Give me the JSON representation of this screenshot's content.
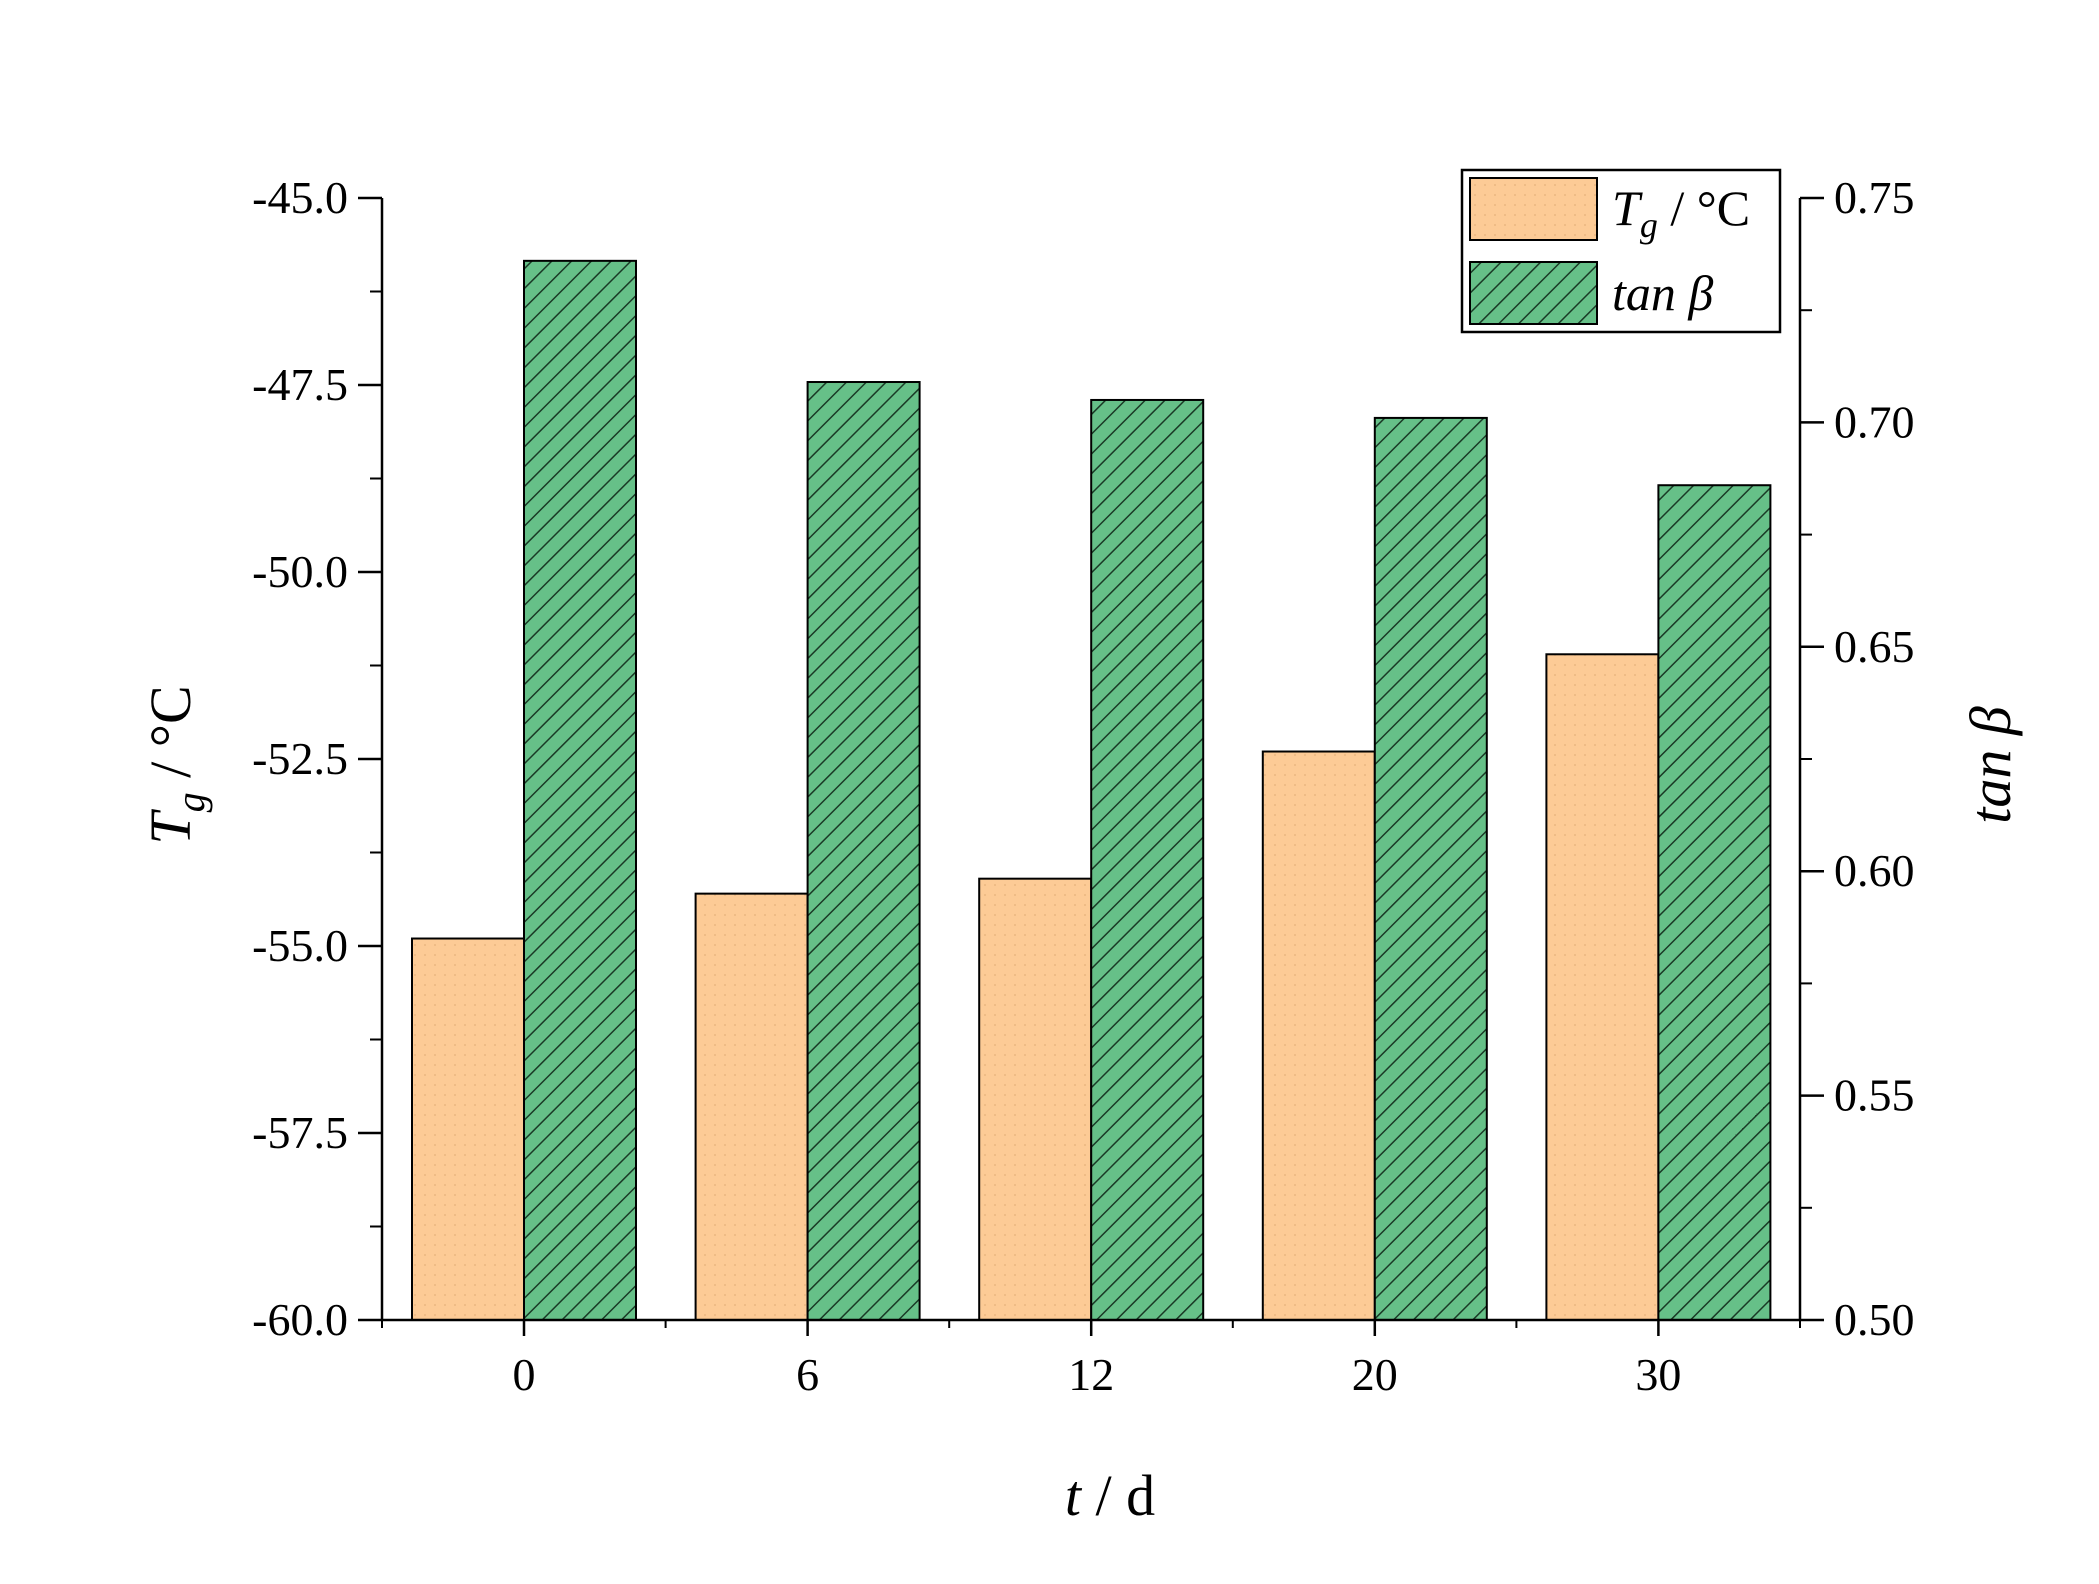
{
  "chart_data": {
    "type": "bar",
    "categories": [
      "0",
      "6",
      "12",
      "20",
      "30"
    ],
    "series": [
      {
        "name": "T_g / °C",
        "axis": "left",
        "values": [
          -54.9,
          -54.3,
          -54.1,
          -52.4,
          -51.1
        ],
        "color": "#FDCB96",
        "pattern": "dotted"
      },
      {
        "name": "tan β",
        "axis": "right",
        "values": [
          0.736,
          0.709,
          0.705,
          0.701,
          0.686
        ],
        "color": "#66C088",
        "pattern": "hatched"
      }
    ],
    "xlabel": {
      "var": "t",
      "unit": " / d"
    },
    "ylabel_left": {
      "var": "T",
      "sub": "g",
      "unit": " / °C"
    },
    "ylabel_right": "tan β",
    "ylim_left": [
      -60.0,
      -45.0
    ],
    "ylim_right": [
      0.5,
      0.75
    ],
    "yticks_left": [
      "-60.0",
      "-57.5",
      "-55.0",
      "-52.5",
      "-50.0",
      "-47.5",
      "-45.0"
    ],
    "yticks_right": [
      "0.50",
      "0.55",
      "0.60",
      "0.65",
      "0.70",
      "0.75"
    ],
    "legend": {
      "placement": "top-right",
      "entries": [
        {
          "var": "T",
          "sub": "g",
          "unit": " / °C"
        },
        {
          "text": "tan β"
        }
      ]
    },
    "grid": false
  }
}
